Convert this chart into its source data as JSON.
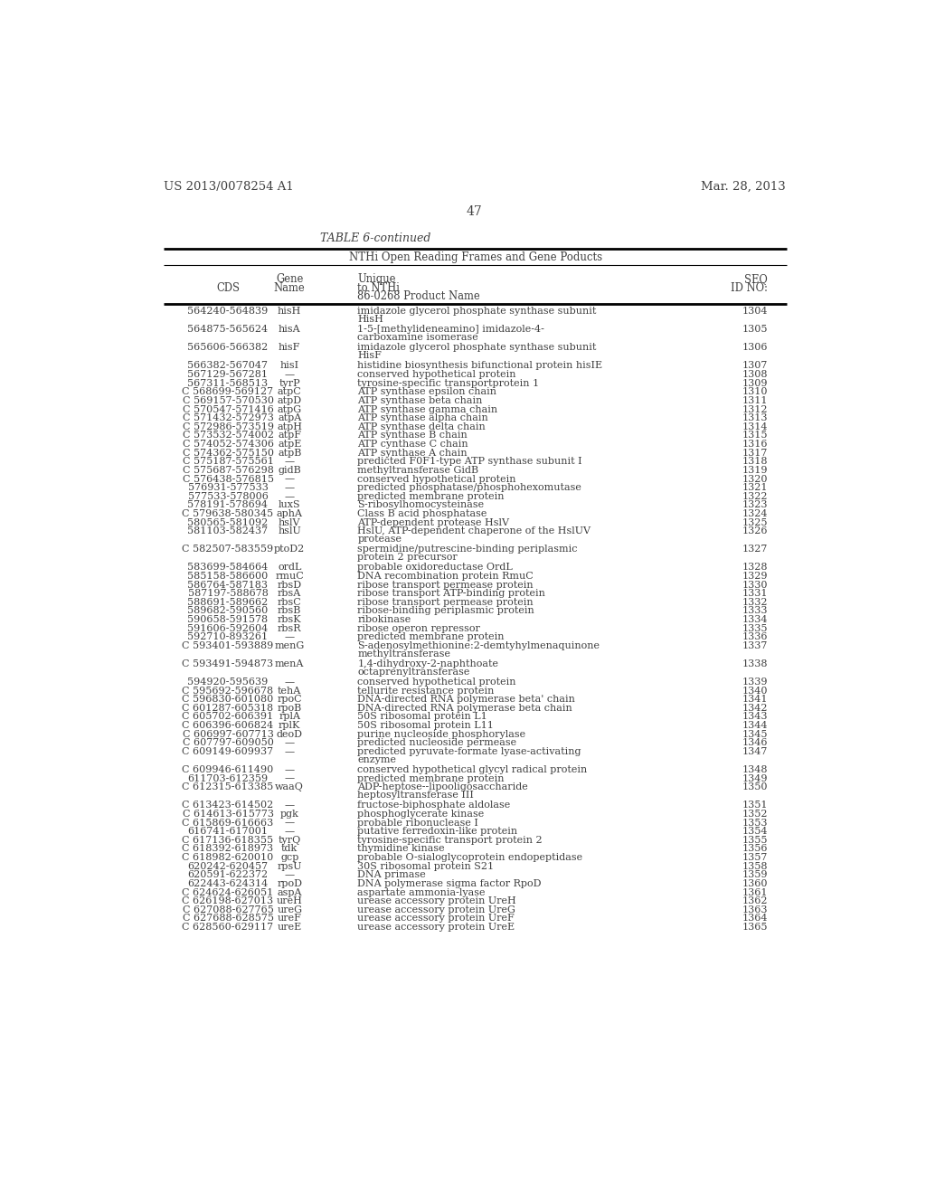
{
  "header_left": "US 2013/0078254 A1",
  "header_right": "Mar. 28, 2013",
  "page_number": "47",
  "table_title": "TABLE 6-continued",
  "table_subtitle": "NTHi Open Reading Frames and Gene Poducts",
  "rows": [
    [
      "564240-564839",
      "hisH",
      "imidazole glycerol phosphate synthase subunit\nHisH",
      "1304"
    ],
    [
      "564875-565624",
      "hisA",
      "1-5-[methylideneamino] imidazole-4-\ncarboxamine isomerase",
      "1305"
    ],
    [
      "565606-566382",
      "hisF",
      "imidazole glycerol phosphate synthase subunit\nHisF",
      "1306"
    ],
    [
      "566382-567047",
      "hisI",
      "histidine biosynthesis bifunctional protein hisIE",
      "1307"
    ],
    [
      "567129-567281",
      "—",
      "conserved hypothetical protein",
      "1308"
    ],
    [
      "567311-568513",
      "tyrP",
      "tyrosine-specific transportprotein 1",
      "1309"
    ],
    [
      "C 568699-569127",
      "atpC",
      "ATP synthase epsilon chain",
      "1310"
    ],
    [
      "C 569157-570530",
      "atpD",
      "ATP synthase beta chain",
      "1311"
    ],
    [
      "C 570547-571416",
      "atpG",
      "ATP synthase gamma chain",
      "1312"
    ],
    [
      "C 571432-572973",
      "atpA",
      "ATP synthase alpha chain",
      "1313"
    ],
    [
      "C 572986-573519",
      "atpH",
      "ATP synthase delta chain",
      "1314"
    ],
    [
      "C 573532-574002",
      "atpF",
      "ATP synthase B chain",
      "1315"
    ],
    [
      "C 574052-574306",
      "atpE",
      "ATP cynthase C chain",
      "1316"
    ],
    [
      "C 574362-575150",
      "atpB",
      "ATP synthase A chain",
      "1317"
    ],
    [
      "C 575187-575561",
      "—",
      "predicted F0F1-type ATP synthase subunit I",
      "1318"
    ],
    [
      "C 575687-576298",
      "gidB",
      "methyltransferase GidB",
      "1319"
    ],
    [
      "C 576438-576815",
      "—",
      "conserved hypothetical protein",
      "1320"
    ],
    [
      "576931-577533",
      "—",
      "predicted phosphatase/phosphohexomutase",
      "1321"
    ],
    [
      "577533-578006",
      "—",
      "predicted membrane protein",
      "1322"
    ],
    [
      "578191-578694",
      "luxS",
      "S-ribosylhomocysteinase",
      "1323"
    ],
    [
      "C 579638-580345",
      "aphA",
      "Class B acid phosphatase",
      "1324"
    ],
    [
      "580565-581092",
      "hslV",
      "ATP-dependent protease HslV",
      "1325"
    ],
    [
      "581103-582437",
      "hslU",
      "HslU, ATP-dependent chaperone of the HslUV\nprotease",
      "1326"
    ],
    [
      "C 582507-583559",
      "ptoD2",
      "spermidine/putrescine-binding periplasmic\nprotein 2 precursor",
      "1327"
    ],
    [
      "583699-584664",
      "ordL",
      "probable oxidoreductase OrdL",
      "1328"
    ],
    [
      "585158-586600",
      "rmuC",
      "DNA recombination protein RmuC",
      "1329"
    ],
    [
      "586764-587183",
      "rbsD",
      "ribose transport permease protein",
      "1330"
    ],
    [
      "587197-588678",
      "rbsA",
      "ribose transport ATP-binding protein",
      "1331"
    ],
    [
      "588691-589662",
      "rbsC",
      "ribose transport permease protein",
      "1332"
    ],
    [
      "589682-590560",
      "rbsB",
      "ribose-binding periplasmic protein",
      "1333"
    ],
    [
      "590658-591578",
      "rbsK",
      "ribokinase",
      "1334"
    ],
    [
      "591606-592604",
      "rbsR",
      "ribose operon repressor",
      "1335"
    ],
    [
      "592710-893261",
      "—",
      "predicted membrane protein",
      "1336"
    ],
    [
      "C 593401-593889",
      "menG",
      "S-adenosylmethionine:2-demtyhylmenaquinone\nmethyltransferase",
      "1337"
    ],
    [
      "C 593491-594873",
      "menA",
      "1,4-dihydroxy-2-naphthoate\noctaprenyltransferase",
      "1338"
    ],
    [
      "594920-595639",
      "—",
      "conserved hypothetical protein",
      "1339"
    ],
    [
      "C 595692-596678",
      "tehA",
      "tellurite resistance protein",
      "1340"
    ],
    [
      "C 596830-601080",
      "rpoC",
      "DNA-directed RNA polymerase beta' chain",
      "1341"
    ],
    [
      "C 601287-605318",
      "rpoB",
      "DNA-directed RNA polymerase beta chain",
      "1342"
    ],
    [
      "C 605702-606391",
      "rplA",
      "50S ribosomal protein L1",
      "1343"
    ],
    [
      "C 606396-606824",
      "rplK",
      "50S ribosomal protein L11",
      "1344"
    ],
    [
      "C 606997-607713",
      "deoD",
      "purine nucleoside phosphorylase",
      "1345"
    ],
    [
      "C 607797-609050",
      "—",
      "predicted nucleoside permease",
      "1346"
    ],
    [
      "C 609149-609937",
      "—",
      "predicted pyruvate-formate lyase-activating\nenzyme",
      "1347"
    ],
    [
      "C 609946-611490",
      "—",
      "conserved hypothetical glycyl radical protein",
      "1348"
    ],
    [
      "611703-612359",
      "—",
      "predicted membrane protein",
      "1349"
    ],
    [
      "C 612315-613385",
      "waaQ",
      "ADP-heptose--lipooligosaccharide\nheptosyltransferase III",
      "1350"
    ],
    [
      "C 613423-614502",
      "—",
      "fructose-biphosphate aldolase",
      "1351"
    ],
    [
      "C 614613-615773",
      "pgk",
      "phosphoglycerate kinase",
      "1352"
    ],
    [
      "C 615869-616663",
      "—",
      "probable ribonuclease I",
      "1353"
    ],
    [
      "616741-617001",
      "—",
      "putative ferredoxin-like protein",
      "1354"
    ],
    [
      "C 617136-618355",
      "tyrQ",
      "tyrosine-specific transport protein 2",
      "1355"
    ],
    [
      "C 618392-618973",
      "tdk",
      "thymidine kinase",
      "1356"
    ],
    [
      "C 618982-620010",
      "gcp",
      "probable O-sialoglycoprotein endopeptidase",
      "1357"
    ],
    [
      "620242-620457",
      "rpsU",
      "30S ribosomal protein S21",
      "1358"
    ],
    [
      "620591-622372",
      "—",
      "DNA primase",
      "1359"
    ],
    [
      "622443-624314",
      "rpoD",
      "DNA polymerase sigma factor RpoD",
      "1360"
    ],
    [
      "C 624624-626051",
      "aspA",
      "aspartate ammonia-lyase",
      "1361"
    ],
    [
      "C 626198-627013",
      "ureH",
      "urease accessory protein UreH",
      "1362"
    ],
    [
      "C 627088-627765",
      "ureG",
      "urease accessory protein UreG",
      "1363"
    ],
    [
      "C 627688-628575",
      "ureF",
      "urease accessory protein UreF",
      "1364"
    ],
    [
      "C 628560-629117",
      "ureE",
      "urease accessory protein UreE",
      "1365"
    ]
  ]
}
